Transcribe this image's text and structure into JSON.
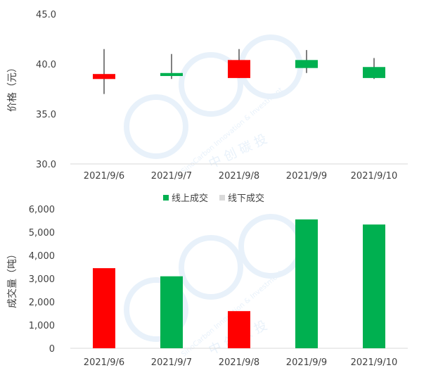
{
  "colors": {
    "up": "#ff0000",
    "down": "#00b050",
    "offline": "#d9d9d9",
    "axis": "#d9d9d9",
    "text": "#404040",
    "watermark": "#e6f0fa"
  },
  "watermark": {
    "company": "中 创 碳 投",
    "english": "SinoCarbon Innovation & Investment"
  },
  "chart_data": [
    {
      "type": "candlestick",
      "title": "",
      "ylabel": "价格（元）",
      "xlabel": "",
      "ylim": [
        30,
        45
      ],
      "yticks": [
        "30.0",
        "35.0",
        "40.0",
        "45.0"
      ],
      "categories": [
        "2021/9/6",
        "2021/9/7",
        "2021/9/8",
        "2021/9/9",
        "2021/9/10"
      ],
      "series": [
        {
          "date": "2021/9/6",
          "open": 39.0,
          "close": 38.5,
          "high": 41.5,
          "low": 37.0,
          "color": "up"
        },
        {
          "date": "2021/9/7",
          "open": 38.8,
          "close": 39.1,
          "high": 41.0,
          "low": 38.5,
          "color": "down"
        },
        {
          "date": "2021/9/8",
          "open": 38.6,
          "close": 40.4,
          "high": 41.5,
          "low": 38.6,
          "color": "up"
        },
        {
          "date": "2021/9/9",
          "open": 40.4,
          "close": 39.6,
          "high": 41.4,
          "low": 39.1,
          "color": "down"
        },
        {
          "date": "2021/9/10",
          "open": 39.7,
          "close": 38.6,
          "high": 40.6,
          "low": 38.5,
          "color": "down"
        }
      ]
    },
    {
      "type": "bar",
      "title": "",
      "ylabel": "成交量（吨）",
      "xlabel": "",
      "ylim": [
        0,
        6000
      ],
      "yticks": [
        "0",
        "1,000",
        "2,000",
        "3,000",
        "4,000",
        "5,000",
        "6,000"
      ],
      "categories": [
        "2021/9/6",
        "2021/9/7",
        "2021/9/8",
        "2021/9/9",
        "2021/9/10"
      ],
      "legend": [
        {
          "label": "线上成交",
          "color": "down"
        },
        {
          "label": "线下成交",
          "color": "offline"
        }
      ],
      "legend_position": "top-center",
      "values": [
        3450,
        3100,
        1600,
        5550,
        5330
      ],
      "bar_colors": [
        "up",
        "down",
        "up",
        "down",
        "down"
      ]
    }
  ]
}
